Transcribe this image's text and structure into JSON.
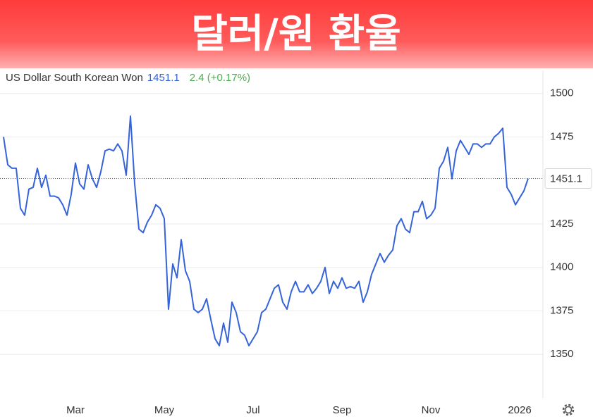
{
  "chart_data": {
    "type": "line",
    "title": "달러/원 환율",
    "series": [
      {
        "name": "US Dollar South Korean Won",
        "color": "#3563d9",
        "values": [
          1475,
          1459,
          1457,
          1457,
          1434,
          1430,
          1445,
          1446,
          1457,
          1446,
          1453,
          1441,
          1441,
          1440,
          1436,
          1430,
          1442,
          1460,
          1448,
          1445,
          1459,
          1451,
          1446,
          1455,
          1467,
          1468,
          1467,
          1471,
          1467,
          1453,
          1487,
          1448,
          1422,
          1420,
          1426,
          1430,
          1436,
          1434,
          1428,
          1376,
          1402,
          1394,
          1416,
          1398,
          1392,
          1376,
          1374,
          1376,
          1382,
          1370,
          1359,
          1355,
          1368,
          1357,
          1380,
          1374,
          1363,
          1361,
          1355,
          1359,
          1363,
          1374,
          1376,
          1382,
          1388,
          1390,
          1380,
          1376,
          1386,
          1392,
          1386,
          1386,
          1390,
          1385,
          1388,
          1392,
          1400,
          1385,
          1392,
          1388,
          1394,
          1388,
          1389,
          1388,
          1392,
          1380,
          1386,
          1396,
          1402,
          1408,
          1403,
          1407,
          1410,
          1424,
          1428,
          1422,
          1420,
          1432,
          1432,
          1438,
          1428,
          1430,
          1434,
          1457,
          1461,
          1469,
          1451,
          1467,
          1473,
          1469,
          1465,
          1471,
          1471,
          1469,
          1471,
          1471,
          1475,
          1477,
          1480,
          1446,
          1442,
          1436,
          1440,
          1444,
          1451.1
        ]
      }
    ],
    "categories": [
      null,
      null,
      null,
      null,
      null,
      null,
      null,
      null,
      null,
      null,
      null,
      null,
      null,
      null,
      null,
      null,
      null,
      "Mar",
      null,
      null,
      null,
      null,
      null,
      null,
      null,
      null,
      null,
      null,
      null,
      null,
      null,
      null,
      null,
      null,
      null,
      null,
      null,
      null,
      "May",
      null,
      null,
      null,
      null,
      null,
      null,
      null,
      null,
      null,
      null,
      null,
      null,
      null,
      null,
      null,
      null,
      null,
      null,
      null,
      null,
      "Jul",
      null,
      null,
      null,
      null,
      null,
      null,
      null,
      null,
      null,
      null,
      null,
      null,
      null,
      null,
      null,
      null,
      null,
      null,
      null,
      null,
      "Sep",
      null,
      null,
      null,
      null,
      null,
      null,
      null,
      null,
      null,
      null,
      null,
      null,
      null,
      null,
      null,
      null,
      null,
      null,
      null,
      null,
      "Nov",
      null,
      null,
      null,
      null,
      null,
      null,
      null,
      null,
      null,
      null,
      null,
      null,
      null,
      null,
      null,
      null,
      null,
      null,
      null,
      null,
      "2026",
      null,
      null
    ],
    "change_label": "2.4 (+0.17%)",
    "change_color": "#4caf50",
    "ylim": [
      1325,
      1510
    ],
    "yticks": [
      1350,
      1375,
      1400,
      1425,
      1475,
      1500
    ],
    "grid": true
  }
}
